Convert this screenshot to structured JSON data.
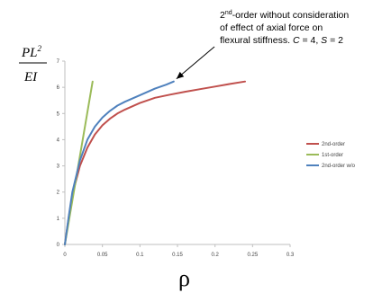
{
  "chart_data": {
    "type": "line",
    "xlabel": "ρ",
    "ylabel": {
      "numerator_base": "PL",
      "numerator_exp": "2",
      "denominator": "EI"
    },
    "xlim": [
      0,
      0.3
    ],
    "ylim": [
      0,
      7
    ],
    "x_ticks": [
      "0",
      "0.05",
      "0.1",
      "0.15",
      "0.2",
      "0.25",
      "0.3"
    ],
    "y_ticks": [
      "0",
      "1",
      "2",
      "3",
      "4",
      "5",
      "6",
      "7"
    ],
    "grid": false,
    "legend_position": "right",
    "series": [
      {
        "name": "2nd-order",
        "color": "#c0504d",
        "points": [
          [
            0,
            0
          ],
          [
            0.005,
            1.0
          ],
          [
            0.01,
            1.9
          ],
          [
            0.02,
            3.0
          ],
          [
            0.03,
            3.7
          ],
          [
            0.04,
            4.2
          ],
          [
            0.05,
            4.55
          ],
          [
            0.06,
            4.8
          ],
          [
            0.07,
            5.0
          ],
          [
            0.08,
            5.15
          ],
          [
            0.1,
            5.4
          ],
          [
            0.12,
            5.6
          ],
          [
            0.14,
            5.72
          ],
          [
            0.16,
            5.83
          ],
          [
            0.18,
            5.93
          ],
          [
            0.2,
            6.03
          ],
          [
            0.22,
            6.13
          ],
          [
            0.24,
            6.22
          ]
        ]
      },
      {
        "name": "1st-order",
        "color": "#9bbb59",
        "points": [
          [
            0,
            0
          ],
          [
            0.037,
            6.22
          ]
        ]
      },
      {
        "name": "2nd-order w/o",
        "color": "#4f81bd",
        "points": [
          [
            0,
            0
          ],
          [
            0.005,
            1.05
          ],
          [
            0.01,
            2.0
          ],
          [
            0.02,
            3.2
          ],
          [
            0.03,
            4.0
          ],
          [
            0.04,
            4.5
          ],
          [
            0.05,
            4.85
          ],
          [
            0.06,
            5.1
          ],
          [
            0.07,
            5.3
          ],
          [
            0.08,
            5.45
          ],
          [
            0.1,
            5.7
          ],
          [
            0.12,
            5.95
          ],
          [
            0.135,
            6.1
          ],
          [
            0.145,
            6.22
          ]
        ]
      }
    ],
    "annotation": {
      "line1_pre": "2",
      "line1_sup": "nd",
      "line1_post": "-order without consideration",
      "line2": "of effect of axial force on",
      "line3_pre": "flexural stiffness. ",
      "line3_C": "C",
      "line3_mid": " = 4, ",
      "line3_S": "S",
      "line3_post": " = 2",
      "arrow_target": [
        0.145,
        6.22
      ]
    }
  }
}
